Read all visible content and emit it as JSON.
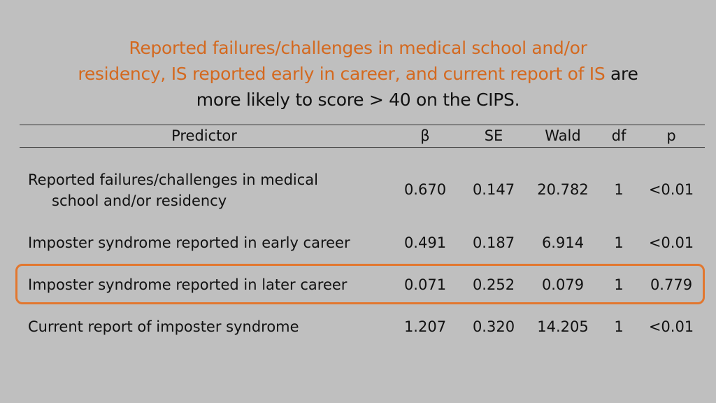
{
  "title": {
    "line1": "Reported failures/challenges in medical school and/or",
    "line2_highlight": "residency, IS reported early in career, and current report of IS",
    "line2_tail": " are",
    "line3": "more likely to score > 40 on the CIPS."
  },
  "columns": [
    "Predictor",
    "β",
    "SE",
    "Wald",
    "df",
    "p"
  ],
  "rows": [
    {
      "predictor_line1": "Reported failures/challenges in medical",
      "predictor_line2": "school and/or residency",
      "beta": "0.670",
      "se": "0.147",
      "wald": "20.782",
      "df": "1",
      "p": "<0.01"
    },
    {
      "predictor": "Imposter syndrome reported in early career",
      "beta": "0.491",
      "se": "0.187",
      "wald": "6.914",
      "df": "1",
      "p": "<0.01"
    },
    {
      "predictor": "Imposter syndrome reported in later career",
      "beta": "0.071",
      "se": "0.252",
      "wald": "0.079",
      "df": "1",
      "p": "0.779"
    },
    {
      "predictor": "Current report of imposter syndrome",
      "beta": "1.207",
      "se": "0.320",
      "wald": "14.205",
      "df": "1",
      "p": "<0.01"
    }
  ],
  "colors": {
    "accent": "#d4691f",
    "highlight_border": "#e2772f",
    "background": "#bfbfbf"
  }
}
